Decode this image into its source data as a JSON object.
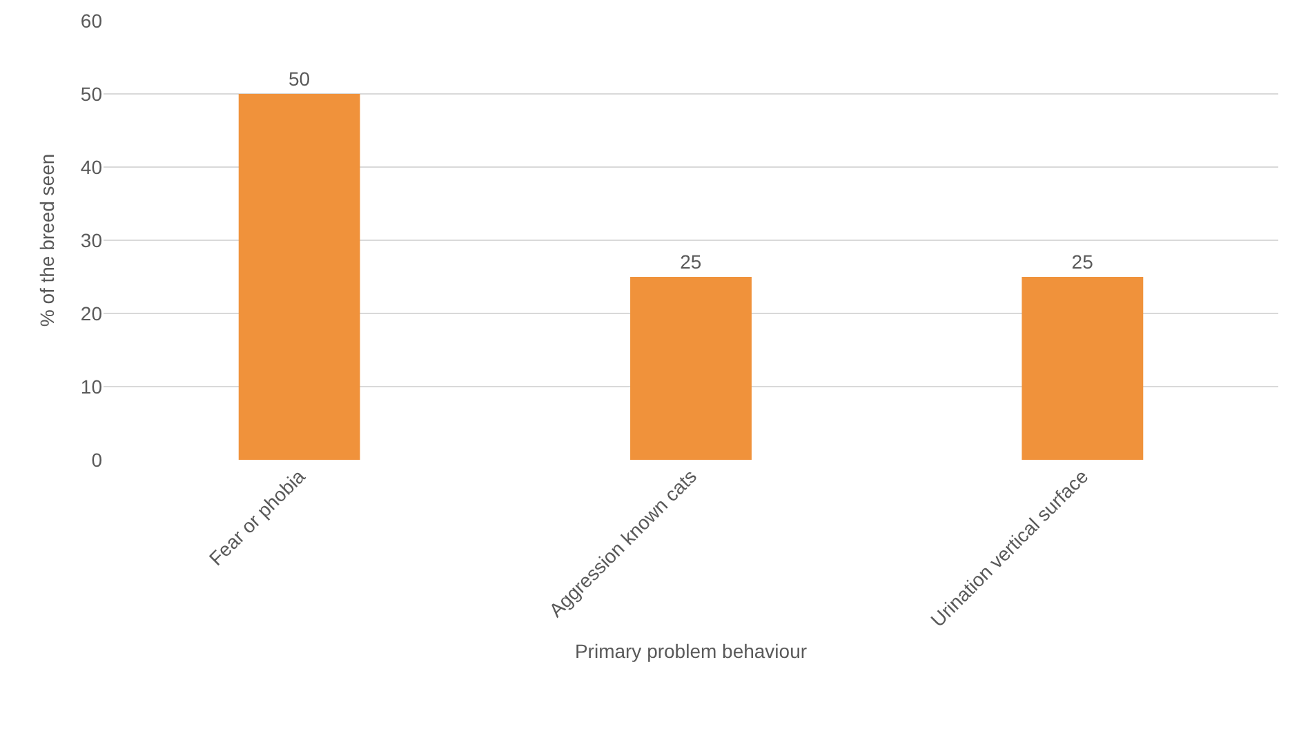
{
  "chart_data": {
    "type": "bar",
    "xlabel": "Primary problem behaviour",
    "ylabel": "% of the breed seen",
    "categories": [
      "Fear or phobia",
      "Aggression known cats",
      "Urination vertical surface"
    ],
    "values": [
      50,
      25,
      25
    ],
    "color": "#f0923b",
    "ylim": [
      0,
      60
    ],
    "yticks": [
      0,
      10,
      20,
      30,
      40,
      50,
      60
    ],
    "grid": "y",
    "data_labels": true
  }
}
